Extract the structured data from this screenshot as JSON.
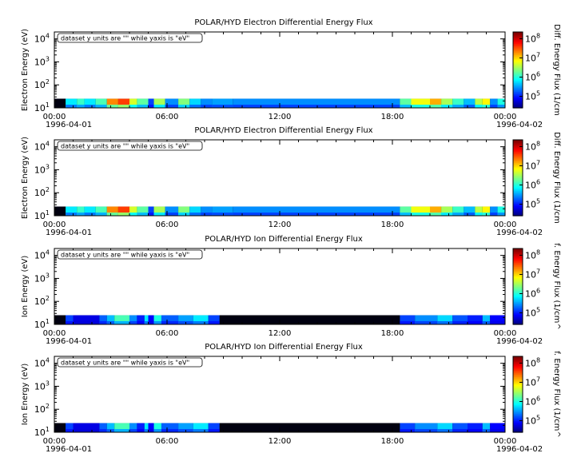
{
  "chart_data": [
    {
      "type": "heatmap",
      "title": "POLAR/HYD  Electron Differential Energy Flux",
      "ylabel": "Electron Energy (eV)",
      "zlabel": "Diff. Energy Flux (1/cm",
      "annotation": "dataset y units are \"\" while yaxis is \"eV\"",
      "ylim": [
        10,
        20000
      ],
      "y_scale": "log",
      "y_ticks": [
        "10",
        "10",
        "10",
        "10"
      ],
      "y_tick_exponents": [
        "1",
        "2",
        "3",
        "4"
      ],
      "x_tick_labels": [
        "00:00",
        "06:00",
        "12:00",
        "18:00",
        "00:00"
      ],
      "x_tick_dates": [
        "1996-04-01",
        "",
        "",
        "",
        "1996-04-02"
      ],
      "x_hours": [
        0,
        6,
        12,
        18,
        24
      ],
      "z_scale": "log",
      "z_ticks": [
        "10",
        "10",
        "10",
        "10"
      ],
      "z_tick_exponents": [
        "5",
        "6",
        "7",
        "8"
      ],
      "band_energy_range": [
        10,
        25
      ],
      "segments": [
        [
          0.0,
          0.6,
          0.0
        ],
        [
          0.6,
          1.2,
          0.3
        ],
        [
          1.2,
          1.6,
          0.38
        ],
        [
          1.6,
          2.2,
          0.3
        ],
        [
          2.2,
          2.8,
          0.4
        ],
        [
          2.8,
          3.4,
          0.72
        ],
        [
          3.4,
          4.0,
          0.8
        ],
        [
          4.0,
          4.4,
          0.55
        ],
        [
          4.4,
          5.0,
          0.42
        ],
        [
          5.0,
          5.3,
          0.12
        ],
        [
          5.3,
          5.9,
          0.5
        ],
        [
          5.9,
          6.6,
          0.2
        ],
        [
          6.6,
          7.2,
          0.46
        ],
        [
          7.2,
          7.8,
          0.28
        ],
        [
          7.8,
          8.4,
          0.2
        ],
        [
          8.4,
          9.5,
          0.22
        ],
        [
          9.5,
          12.0,
          0.2
        ],
        [
          12.0,
          18.4,
          0.2
        ],
        [
          18.4,
          19.0,
          0.42
        ],
        [
          19.0,
          20.0,
          0.58
        ],
        [
          20.0,
          20.6,
          0.68
        ],
        [
          20.6,
          21.2,
          0.5
        ],
        [
          21.2,
          21.8,
          0.38
        ],
        [
          21.8,
          22.4,
          0.25
        ],
        [
          22.4,
          22.8,
          0.52
        ],
        [
          22.8,
          23.2,
          0.6
        ],
        [
          23.2,
          23.6,
          0.2
        ],
        [
          23.6,
          24.0,
          0.35
        ]
      ]
    },
    {
      "type": "heatmap",
      "title": "POLAR/HYD  Electron Differential Energy Flux",
      "ylabel": "Electron Energy (eV)",
      "zlabel": "Diff. Energy Flux (1/cm",
      "annotation": "dataset y units are \"\" while yaxis is \"eV\"",
      "ylim": [
        10,
        20000
      ],
      "y_scale": "log",
      "y_ticks": [
        "10",
        "10",
        "10",
        "10"
      ],
      "y_tick_exponents": [
        "1",
        "2",
        "3",
        "4"
      ],
      "x_tick_labels": [
        "00:00",
        "06:00",
        "12:00",
        "18:00",
        "00:00"
      ],
      "x_tick_dates": [
        "1996-04-01",
        "",
        "",
        "",
        "1996-04-02"
      ],
      "x_hours": [
        0,
        6,
        12,
        18,
        24
      ],
      "z_scale": "log",
      "z_ticks": [
        "10",
        "10",
        "10",
        "10"
      ],
      "z_tick_exponents": [
        "5",
        "6",
        "7",
        "8"
      ],
      "band_energy_range": [
        10,
        25
      ],
      "segments": [
        [
          0.0,
          0.6,
          0.0
        ],
        [
          0.6,
          1.2,
          0.3
        ],
        [
          1.2,
          1.6,
          0.38
        ],
        [
          1.6,
          2.2,
          0.3
        ],
        [
          2.2,
          2.8,
          0.4
        ],
        [
          2.8,
          3.4,
          0.72
        ],
        [
          3.4,
          4.0,
          0.8
        ],
        [
          4.0,
          4.4,
          0.55
        ],
        [
          4.4,
          5.0,
          0.42
        ],
        [
          5.0,
          5.3,
          0.12
        ],
        [
          5.3,
          5.9,
          0.5
        ],
        [
          5.9,
          6.6,
          0.2
        ],
        [
          6.6,
          7.2,
          0.46
        ],
        [
          7.2,
          7.8,
          0.28
        ],
        [
          7.8,
          8.4,
          0.2
        ],
        [
          8.4,
          9.5,
          0.22
        ],
        [
          9.5,
          12.0,
          0.2
        ],
        [
          12.0,
          18.4,
          0.2
        ],
        [
          18.4,
          19.0,
          0.42
        ],
        [
          19.0,
          20.0,
          0.58
        ],
        [
          20.0,
          20.6,
          0.68
        ],
        [
          20.6,
          21.2,
          0.5
        ],
        [
          21.2,
          21.8,
          0.38
        ],
        [
          21.8,
          22.4,
          0.25
        ],
        [
          22.4,
          22.8,
          0.52
        ],
        [
          22.8,
          23.2,
          0.6
        ],
        [
          23.2,
          23.6,
          0.2
        ],
        [
          23.6,
          24.0,
          0.35
        ]
      ]
    },
    {
      "type": "heatmap",
      "title": "POLAR/HYD  Ion Differential Energy Flux",
      "ylabel": "Ion Energy (eV)",
      "zlabel": "f. Energy Flux (1/cm^",
      "annotation": "dataset y units are \"\" while yaxis is \"eV\"",
      "ylim": [
        10,
        20000
      ],
      "y_scale": "log",
      "y_ticks": [
        "10",
        "10",
        "10",
        "10"
      ],
      "y_tick_exponents": [
        "1",
        "2",
        "3",
        "4"
      ],
      "x_tick_labels": [
        "00:00",
        "06:00",
        "12:00",
        "18:00",
        "00:00"
      ],
      "x_tick_dates": [
        "1996-04-01",
        "",
        "",
        "",
        "1996-04-02"
      ],
      "x_hours": [
        0,
        6,
        12,
        18,
        24
      ],
      "z_scale": "log",
      "z_ticks": [
        "10",
        "10",
        "10",
        "10"
      ],
      "z_tick_exponents": [
        "5",
        "6",
        "7",
        "8"
      ],
      "band_energy_range": [
        10,
        25
      ],
      "segments": [
        [
          0.0,
          0.6,
          0.0
        ],
        [
          0.6,
          1.0,
          0.12
        ],
        [
          1.0,
          2.4,
          0.02
        ],
        [
          2.4,
          2.8,
          0.15
        ],
        [
          2.8,
          3.2,
          0.25
        ],
        [
          3.2,
          4.0,
          0.4
        ],
        [
          4.0,
          4.4,
          0.2
        ],
        [
          4.4,
          4.8,
          0.08
        ],
        [
          4.8,
          5.0,
          0.3
        ],
        [
          5.0,
          5.3,
          0.05
        ],
        [
          5.3,
          5.7,
          0.35
        ],
        [
          5.7,
          6.6,
          0.15
        ],
        [
          6.6,
          7.4,
          0.22
        ],
        [
          7.4,
          8.2,
          0.3
        ],
        [
          8.2,
          8.8,
          0.12
        ],
        [
          8.8,
          18.4,
          0.0
        ],
        [
          18.4,
          19.2,
          0.12
        ],
        [
          19.2,
          20.4,
          0.2
        ],
        [
          20.4,
          21.2,
          0.28
        ],
        [
          21.2,
          22.0,
          0.14
        ],
        [
          22.0,
          22.8,
          0.08
        ],
        [
          22.8,
          23.2,
          0.25
        ],
        [
          23.2,
          24.0,
          0.05
        ]
      ]
    },
    {
      "type": "heatmap",
      "title": "POLAR/HYD  Ion Differential Energy Flux",
      "ylabel": "Ion Energy (eV)",
      "zlabel": "f. Energy Flux (1/cm^",
      "annotation": "dataset y units are \"\" while yaxis is \"eV\"",
      "ylim": [
        10,
        20000
      ],
      "y_scale": "log",
      "y_ticks": [
        "10",
        "10",
        "10",
        "10"
      ],
      "y_tick_exponents": [
        "1",
        "2",
        "3",
        "4"
      ],
      "x_tick_labels": [
        "00:00",
        "06:00",
        "12:00",
        "18:00",
        "00:00"
      ],
      "x_tick_dates": [
        "1996-04-01",
        "",
        "",
        "",
        "1996-04-02"
      ],
      "x_hours": [
        0,
        6,
        12,
        18,
        24
      ],
      "z_scale": "log",
      "z_ticks": [
        "10",
        "10",
        "10",
        "10"
      ],
      "z_tick_exponents": [
        "5",
        "6",
        "7",
        "8"
      ],
      "band_energy_range": [
        10,
        25
      ],
      "segments": [
        [
          0.0,
          0.6,
          0.0
        ],
        [
          0.6,
          1.0,
          0.12
        ],
        [
          1.0,
          2.4,
          0.02
        ],
        [
          2.4,
          2.8,
          0.15
        ],
        [
          2.8,
          3.2,
          0.25
        ],
        [
          3.2,
          4.0,
          0.4
        ],
        [
          4.0,
          4.4,
          0.2
        ],
        [
          4.4,
          4.8,
          0.08
        ],
        [
          4.8,
          5.0,
          0.3
        ],
        [
          5.0,
          5.3,
          0.05
        ],
        [
          5.3,
          5.7,
          0.35
        ],
        [
          5.7,
          6.6,
          0.15
        ],
        [
          6.6,
          7.4,
          0.22
        ],
        [
          7.4,
          8.2,
          0.3
        ],
        [
          8.2,
          8.8,
          0.12
        ],
        [
          8.8,
          18.4,
          0.0
        ],
        [
          18.4,
          19.2,
          0.12
        ],
        [
          19.2,
          20.4,
          0.2
        ],
        [
          20.4,
          21.2,
          0.28
        ],
        [
          21.2,
          22.0,
          0.14
        ],
        [
          22.0,
          22.8,
          0.08
        ],
        [
          22.8,
          23.2,
          0.25
        ],
        [
          23.2,
          24.0,
          0.05
        ]
      ]
    }
  ]
}
